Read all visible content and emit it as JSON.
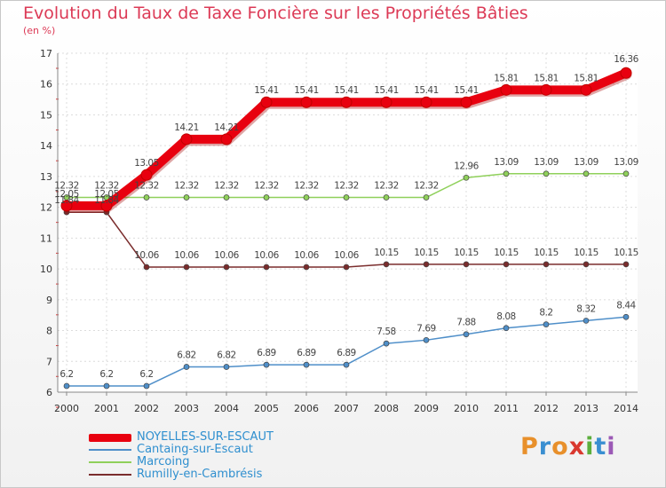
{
  "chart_data": {
    "type": "line",
    "title": "Evolution du Taux de Taxe Foncière sur les Propriétés Bâties",
    "ylabel": "(en %)",
    "xlabel": "",
    "ylim": [
      6,
      17
    ],
    "yticks": [
      "6",
      "7",
      "8",
      "9",
      "10",
      "11",
      "12",
      "13",
      "14",
      "15",
      "16",
      "17"
    ],
    "categories": [
      "2000",
      "2001",
      "2002",
      "2003",
      "2004",
      "2005",
      "2006",
      "2007",
      "2008",
      "2009",
      "2010",
      "2011",
      "2012",
      "2013",
      "2014"
    ],
    "series": [
      {
        "name": "NOYELLES-SUR-ESCAUT",
        "color": "#e8000f",
        "values": [
          12.05,
          12.05,
          13.05,
          14.21,
          14.21,
          15.41,
          15.41,
          15.41,
          15.41,
          15.41,
          15.41,
          15.81,
          15.81,
          15.81,
          16.36
        ],
        "labels": [
          "12.05",
          "12.05",
          "13.05",
          "14.21",
          "14.21",
          "15.41",
          "15.41",
          "15.41",
          "15.41",
          "15.41",
          "15.41",
          "15.81",
          "15.81",
          "15.81",
          "16.36"
        ]
      },
      {
        "name": "Cantaing-sur-Escaut",
        "color": "#4f8fc9",
        "values": [
          6.2,
          6.2,
          6.2,
          6.82,
          6.82,
          6.89,
          6.89,
          6.89,
          7.58,
          7.69,
          7.88,
          8.08,
          8.2,
          8.32,
          8.44
        ],
        "labels": [
          "6.2",
          "6.2",
          "6.2",
          "6.82",
          "6.82",
          "6.89",
          "6.89",
          "6.89",
          "7.58",
          "7.69",
          "7.88",
          "8.08",
          "8.2",
          "8.32",
          "8.44"
        ]
      },
      {
        "name": "Marcoing",
        "color": "#8fd05a",
        "values": [
          12.32,
          12.32,
          12.32,
          12.32,
          12.32,
          12.32,
          12.32,
          12.32,
          12.32,
          12.32,
          12.96,
          13.09,
          13.09,
          13.09,
          13.09
        ],
        "labels": [
          "12.32",
          "12.32",
          "12.32",
          "12.32",
          "12.32",
          "12.32",
          "12.32",
          "12.32",
          "12.32",
          "12.32",
          "12.96",
          "13.09",
          "13.09",
          "13.09",
          "13.09"
        ]
      },
      {
        "name": "Rumilly-en-Cambrésis",
        "color": "#7a2c2c",
        "values": [
          11.84,
          11.84,
          10.06,
          10.06,
          10.06,
          10.06,
          10.06,
          10.06,
          10.15,
          10.15,
          10.15,
          10.15,
          10.15,
          10.15,
          10.15
        ],
        "labels": [
          "11.84",
          "11.84",
          "10.06",
          "10.06",
          "10.06",
          "10.06",
          "10.06",
          "10.06",
          "10.15",
          "10.15",
          "10.15",
          "10.15",
          "10.15",
          "10.15",
          "10.15"
        ]
      }
    ],
    "legend_position": "bottom-left"
  },
  "brand": {
    "p": "P",
    "r": "r",
    "o": "o",
    "x": "x",
    "i": "i",
    "t": "t",
    "i2": "i"
  }
}
